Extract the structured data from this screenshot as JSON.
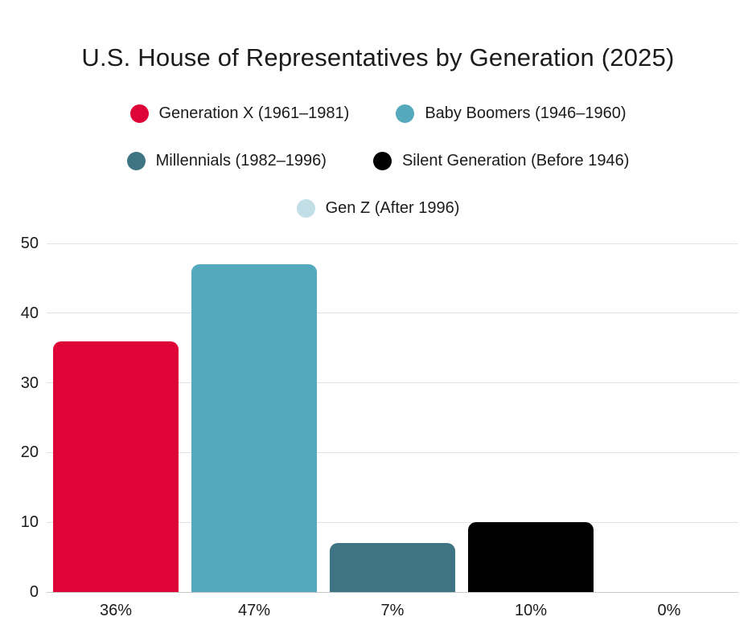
{
  "title": "U.S. House of Representatives by Generation (2025)",
  "legend": {
    "rows": [
      [
        0,
        1
      ],
      [
        2,
        3
      ],
      [
        4
      ]
    ]
  },
  "colors": {
    "gridline": "#e3e3e3",
    "baseline": "#c7c7c7",
    "text": "#1b1b1b"
  },
  "chart_data": {
    "type": "bar",
    "title": "U.S. House of Representatives by Generation (2025)",
    "categories": [
      "Generation X (1961–1981)",
      "Baby Boomers (1946–1960)",
      "Millennials (1982–1996)",
      "Silent Generation (Before 1946)",
      "Gen Z (After 1996)"
    ],
    "values": [
      36,
      47,
      7,
      10,
      0
    ],
    "x_tick_labels": [
      "36%",
      "47%",
      "7%",
      "10%",
      "0%"
    ],
    "bar_colors": [
      "#df0437",
      "#54a9bc",
      "#3e7483",
      "#000000",
      "#c2dee6"
    ],
    "y_ticks": [
      0,
      10,
      20,
      30,
      40,
      50
    ],
    "ylim": [
      0,
      50
    ],
    "xlabel": "",
    "ylabel": "",
    "grid": true,
    "legend_position": "top",
    "value_unit": "percent"
  }
}
